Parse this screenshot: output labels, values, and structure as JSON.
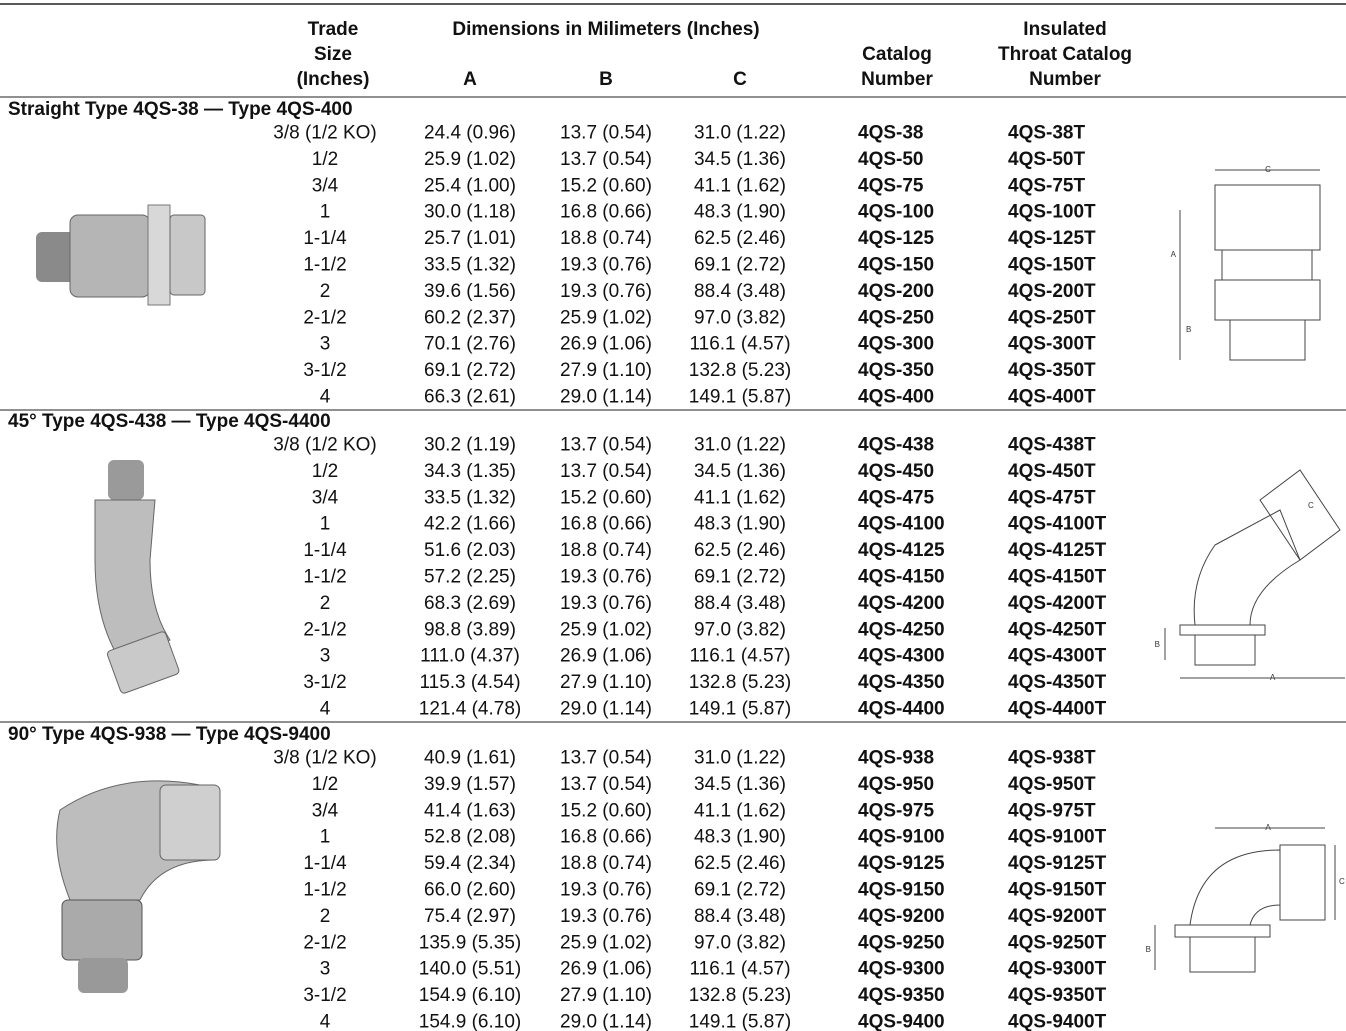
{
  "header": {
    "trade_size": [
      "Trade",
      "Size",
      "(Inches)"
    ],
    "dimensions": "Dimensions in Milimeters (Inches)",
    "a": "A",
    "b": "B",
    "c": "C",
    "catalog": [
      "Catalog",
      "Number"
    ],
    "insulated": [
      "Insulated",
      "Throat Catalog",
      "Number"
    ]
  },
  "sections": [
    {
      "title": "Straight Type 4QS-38 — Type 4QS-400",
      "diagram_labels": [
        "C",
        "A",
        "B"
      ],
      "rows": [
        [
          "3/8 (1/2 KO)",
          "24.4 (0.96)",
          "13.7 (0.54)",
          "31.0 (1.22)",
          "4QS-38",
          "4QS-38T"
        ],
        [
          "1/2",
          "25.9 (1.02)",
          "13.7 (0.54)",
          "34.5 (1.36)",
          "4QS-50",
          "4QS-50T"
        ],
        [
          "3/4",
          "25.4 (1.00)",
          "15.2 (0.60)",
          "41.1 (1.62)",
          "4QS-75",
          "4QS-75T"
        ],
        [
          "1",
          "30.0 (1.18)",
          "16.8 (0.66)",
          "48.3 (1.90)",
          "4QS-100",
          "4QS-100T"
        ],
        [
          "1-1/4",
          "25.7 (1.01)",
          "18.8 (0.74)",
          "62.5 (2.46)",
          "4QS-125",
          "4QS-125T"
        ],
        [
          "1-1/2",
          "33.5 (1.32)",
          "19.3 (0.76)",
          "69.1 (2.72)",
          "4QS-150",
          "4QS-150T"
        ],
        [
          "2",
          "39.6 (1.56)",
          "19.3 (0.76)",
          "88.4 (3.48)",
          "4QS-200",
          "4QS-200T"
        ],
        [
          "2-1/2",
          "60.2 (2.37)",
          "25.9 (1.02)",
          "97.0 (3.82)",
          "4QS-250",
          "4QS-250T"
        ],
        [
          "3",
          "70.1 (2.76)",
          "26.9 (1.06)",
          "116.1 (4.57)",
          "4QS-300",
          "4QS-300T"
        ],
        [
          "3-1/2",
          "69.1 (2.72)",
          "27.9 (1.10)",
          "132.8 (5.23)",
          "4QS-350",
          "4QS-350T"
        ],
        [
          "4",
          "66.3 (2.61)",
          "29.0 (1.14)",
          "149.1 (5.87)",
          "4QS-400",
          "4QS-400T"
        ]
      ]
    },
    {
      "title": "45° Type 4QS-438 — Type 4QS-4400",
      "diagram_labels": [
        "C",
        "B",
        "A"
      ],
      "rows": [
        [
          "3/8 (1/2 KO)",
          "30.2 (1.19)",
          "13.7 (0.54)",
          "31.0 (1.22)",
          "4QS-438",
          "4QS-438T"
        ],
        [
          "1/2",
          "34.3 (1.35)",
          "13.7 (0.54)",
          "34.5 (1.36)",
          "4QS-450",
          "4QS-450T"
        ],
        [
          "3/4",
          "33.5 (1.32)",
          "15.2 (0.60)",
          "41.1 (1.62)",
          "4QS-475",
          "4QS-475T"
        ],
        [
          "1",
          "42.2 (1.66)",
          "16.8 (0.66)",
          "48.3 (1.90)",
          "4QS-4100",
          "4QS-4100T"
        ],
        [
          "1-1/4",
          "51.6 (2.03)",
          "18.8 (0.74)",
          "62.5 (2.46)",
          "4QS-4125",
          "4QS-4125T"
        ],
        [
          "1-1/2",
          "57.2 (2.25)",
          "19.3 (0.76)",
          "69.1 (2.72)",
          "4QS-4150",
          "4QS-4150T"
        ],
        [
          "2",
          "68.3 (2.69)",
          "19.3 (0.76)",
          "88.4 (3.48)",
          "4QS-4200",
          "4QS-4200T"
        ],
        [
          "2-1/2",
          "98.8 (3.89)",
          "25.9 (1.02)",
          "97.0 (3.82)",
          "4QS-4250",
          "4QS-4250T"
        ],
        [
          "3",
          "111.0 (4.37)",
          "26.9 (1.06)",
          "116.1 (4.57)",
          "4QS-4300",
          "4QS-4300T"
        ],
        [
          "3-1/2",
          "115.3 (4.54)",
          "27.9 (1.10)",
          "132.8 (5.23)",
          "4QS-4350",
          "4QS-4350T"
        ],
        [
          "4",
          "121.4 (4.78)",
          "29.0 (1.14)",
          "149.1 (5.87)",
          "4QS-4400",
          "4QS-4400T"
        ]
      ]
    },
    {
      "title": "90° Type 4QS-938 — Type 4QS-9400",
      "diagram_labels": [
        "A",
        "C",
        "B"
      ],
      "rows": [
        [
          "3/8 (1/2 KO)",
          "40.9 (1.61)",
          "13.7 (0.54)",
          "31.0 (1.22)",
          "4QS-938",
          "4QS-938T"
        ],
        [
          "1/2",
          "39.9 (1.57)",
          "13.7 (0.54)",
          "34.5 (1.36)",
          "4QS-950",
          "4QS-950T"
        ],
        [
          "3/4",
          "41.4 (1.63)",
          "15.2 (0.60)",
          "41.1 (1.62)",
          "4QS-975",
          "4QS-975T"
        ],
        [
          "1",
          "52.8 (2.08)",
          "16.8 (0.66)",
          "48.3 (1.90)",
          "4QS-9100",
          "4QS-9100T"
        ],
        [
          "1-1/4",
          "59.4 (2.34)",
          "18.8 (0.74)",
          "62.5 (2.46)",
          "4QS-9125",
          "4QS-9125T"
        ],
        [
          "1-1/2",
          "66.0 (2.60)",
          "19.3 (0.76)",
          "69.1 (2.72)",
          "4QS-9150",
          "4QS-9150T"
        ],
        [
          "2",
          "75.4 (2.97)",
          "19.3 (0.76)",
          "88.4 (3.48)",
          "4QS-9200",
          "4QS-9200T"
        ],
        [
          "2-1/2",
          "135.9 (5.35)",
          "25.9 (1.02)",
          "97.0 (3.82)",
          "4QS-9250",
          "4QS-9250T"
        ],
        [
          "3",
          "140.0 (5.51)",
          "26.9 (1.06)",
          "116.1 (4.57)",
          "4QS-9300",
          "4QS-9300T"
        ],
        [
          "3-1/2",
          "154.9 (6.10)",
          "27.9 (1.10)",
          "132.8 (5.23)",
          "4QS-9350",
          "4QS-9350T"
        ],
        [
          "4",
          "154.9 (6.10)",
          "29.0 (1.14)",
          "149.1 (5.87)",
          "4QS-9400",
          "4QS-9400T"
        ]
      ]
    }
  ]
}
